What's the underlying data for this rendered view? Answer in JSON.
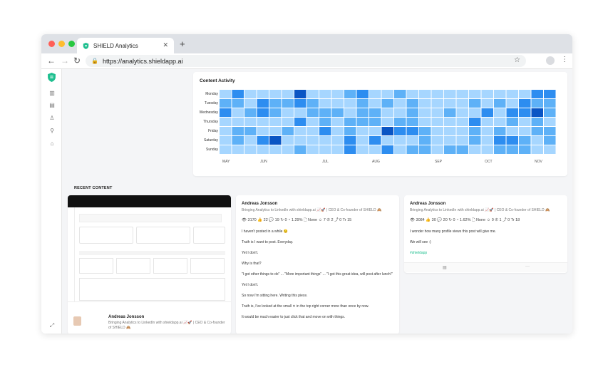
{
  "browser": {
    "tab_title": "SHIELD Analytics",
    "url": "https://analytics.shieldapp.ai"
  },
  "activity": {
    "title": "Content Activity",
    "days": [
      "Monday",
      "Tuesday",
      "Wednesday",
      "Thursday",
      "Friday",
      "Saturday",
      "Sunday"
    ],
    "months": [
      "MAY",
      "JUN",
      "JUL",
      "AUG",
      "SEP",
      "OCT",
      "NOV"
    ],
    "colors": {
      "empty": "#a6d6ff",
      "low": "#5eb1f7",
      "mid": "#2d8df0",
      "high": "#0a55c4"
    }
  },
  "recent": {
    "title": "RECENT CONTENT",
    "posts": [
      {
        "author": "Andreas Jonsson",
        "headline": "Bringing Analytics to LinkedIn with shieldapp.ai 📈🚀 | CEO & Co-founder of SHIELD 🙈"
      },
      {
        "author": "Andreas Jonsson",
        "headline": "Bringing Analytics to LinkedIn with shieldapp.ai 📈🚀 | CEO & Co-founder of SHIELD 🙈",
        "stats": "👁 3170  👍 22  💬 19  ↻ 0  ◔ 1.29%  🗋 None  ☺ 7  ✆ 2  ⤴ 0  Tr 15",
        "lines": [
          "I haven't posted in a while 😉",
          "Truth is I want to post. Everyday.",
          "Yet I don't.",
          "Why is that?",
          "\"I got other things to do\" ... \"More important things\" ... \"I got this great idea, will post after lunch!\"",
          "Yet I don't.",
          "So now I'm sitting here. Writing this piece.",
          "Truth is, I've looked at the small ✕ in the top right corner more than once by now.",
          "It would be much easier to just click that and move on with things."
        ]
      },
      {
        "author": "Andreas Jonsson",
        "headline": "Bringing Analytics to LinkedIn with shieldapp.ai 📈🚀 | CEO & Co-founder of SHIELD 🙈",
        "stats": "👁 3084  👍 30  💬 20  ↻ 0  ◔ 1.62%  🗋 None  ☺ 0  ✆ 1  ⤴ 0  Tr 18",
        "lines": [
          "I wonder how many profile views this post will give me.",
          "We will see :)"
        ],
        "hashtag": "#shieldapp",
        "footer": [
          "▤",
          "···"
        ]
      }
    ]
  }
}
